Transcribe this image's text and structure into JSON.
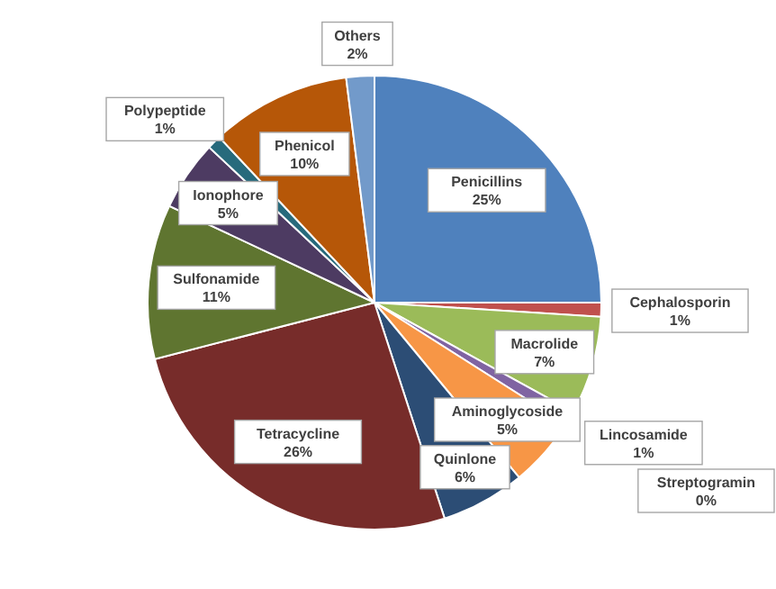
{
  "chart_data": {
    "type": "pie",
    "categories": [
      "Penicillins",
      "Cephalosporin",
      "Macrolide",
      "Lincosamide",
      "Streptogramin",
      "Aminoglycoside",
      "Quinlone",
      "Tetracycline",
      "Sulfonamide",
      "Ionophore",
      "Polypeptide",
      "Phenicol",
      "Others"
    ],
    "values": [
      25,
      1,
      7,
      1,
      0,
      5,
      6,
      26,
      11,
      5,
      1,
      10,
      2
    ],
    "value_labels": [
      "25%",
      "1%",
      "7%",
      "1%",
      "0%",
      "5%",
      "6%",
      "26%",
      "11%",
      "5%",
      "1%",
      "10%",
      "2%"
    ],
    "colors": [
      "#4f81bd",
      "#c0504d",
      "#9bbb59",
      "#8064a2",
      "#4bacc6",
      "#f79646",
      "#2c4d75",
      "#772c2a",
      "#5f7530",
      "#4d3b62",
      "#276a7c",
      "#b65708",
      "#729aca"
    ]
  }
}
